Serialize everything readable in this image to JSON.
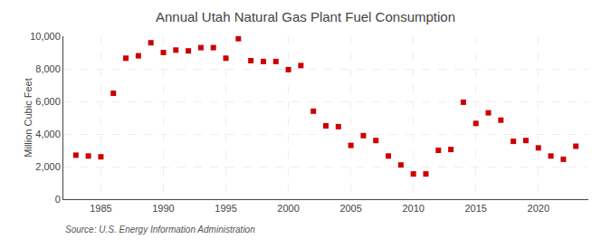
{
  "chart_data": {
    "type": "scatter",
    "title": "Annual Utah Natural Gas Plant Fuel Consumption",
    "ylabel": "Million Cubic Feet",
    "annotations": [
      "Source: U.S. Energy Information Administration"
    ],
    "x": [
      1983,
      1984,
      1985,
      1986,
      1987,
      1988,
      1989,
      1990,
      1991,
      1992,
      1993,
      1994,
      1995,
      1996,
      1997,
      1998,
      1999,
      2000,
      2001,
      2002,
      2003,
      2004,
      2005,
      2006,
      2007,
      2008,
      2009,
      2010,
      2011,
      2012,
      2013,
      2014,
      2015,
      2016,
      2017,
      2018,
      2019,
      2020,
      2021,
      2022,
      2023
    ],
    "values": [
      2700,
      2650,
      2600,
      6500,
      8650,
      8800,
      9600,
      9000,
      9150,
      9100,
      9300,
      9300,
      8650,
      9850,
      8500,
      8450,
      8450,
      7950,
      8200,
      5400,
      4500,
      4450,
      3300,
      3900,
      3600,
      2650,
      2100,
      1550,
      1550,
      3000,
      3050,
      5950,
      4650,
      5300,
      4850,
      3550,
      3600,
      3150,
      2650,
      2450,
      3250
    ],
    "color": "#cc0000",
    "marker": "square",
    "xlim": [
      1982,
      2024
    ],
    "xticks": [
      1985,
      1990,
      1995,
      2000,
      2005,
      2010,
      2015,
      2020
    ],
    "ylim": [
      0,
      10000
    ],
    "yticks": [
      0,
      {
        "value": 2000,
        "label": "2,000"
      },
      {
        "value": 4000,
        "label": "4,000"
      },
      {
        "value": 6000,
        "label": "6,000"
      },
      {
        "value": 8000,
        "label": "8,000"
      },
      {
        "value": 10000,
        "label": "10,000"
      }
    ],
    "grid": true
  }
}
